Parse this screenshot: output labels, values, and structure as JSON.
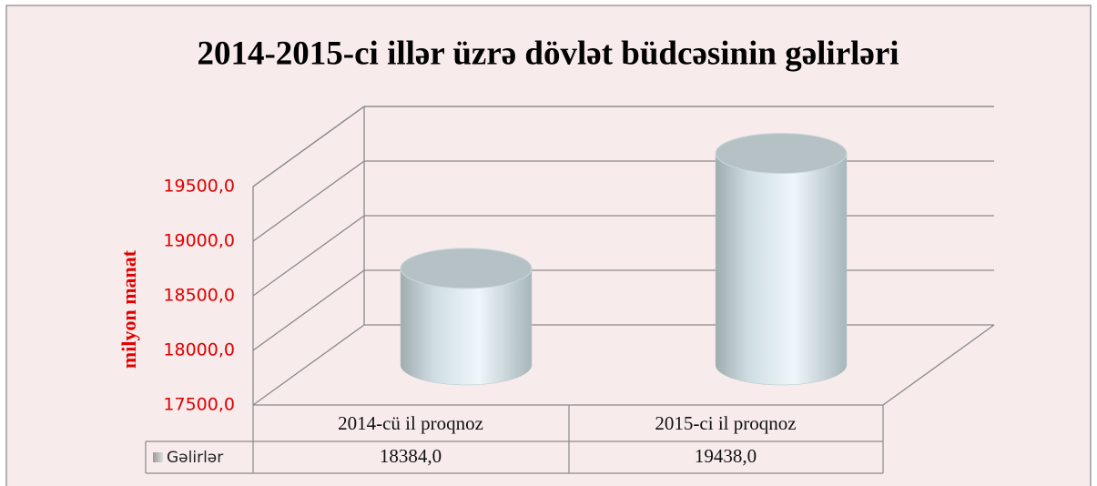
{
  "chart_data": {
    "type": "bar3d-cylinder",
    "title": "2014-2015-ci illər üzrə dövlət büdcəsinin gəlirləri",
    "y_label": "milyon manat",
    "categories": [
      "2014-cü il proqnoz",
      "2015-ci il proqnoz"
    ],
    "series": [
      {
        "name": "Gəlirlər",
        "color": "#dbe9ee",
        "values": [
          18384,
          19438
        ],
        "value_labels": [
          "18384,0",
          "19438,0"
        ]
      }
    ],
    "ylim": [
      17500,
      19500
    ],
    "yticks": [
      {
        "value": 17500,
        "label": "17500,0"
      },
      {
        "value": 18000,
        "label": "18000,0"
      },
      {
        "value": 18500,
        "label": "18500,0"
      },
      {
        "value": 19000,
        "label": "19000,0"
      },
      {
        "value": 19500,
        "label": "19500,0"
      }
    ],
    "grid": true,
    "tick_color": "#e00000"
  }
}
